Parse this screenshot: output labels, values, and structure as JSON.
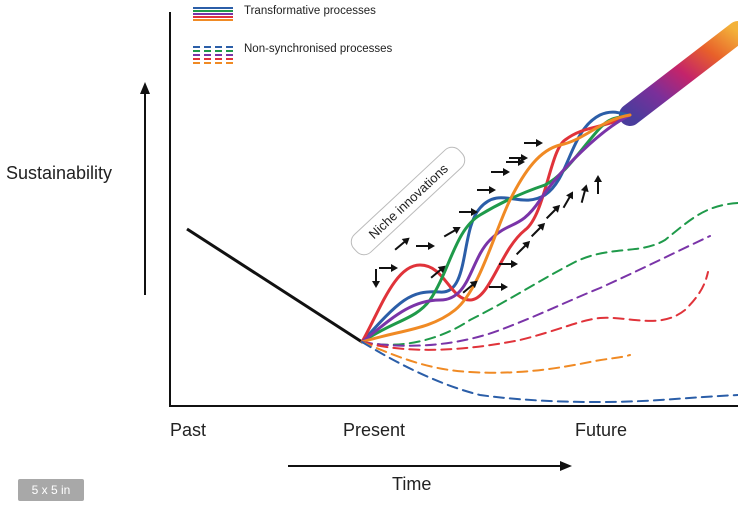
{
  "legend": {
    "transformative": "Transformative processes",
    "non_sync": "Non-synchronised processes"
  },
  "axes": {
    "y_label": "Sustainability",
    "x_label": "Time",
    "x_ticks": [
      "Past",
      "Present",
      "Future"
    ]
  },
  "annotation": "Niche innovations",
  "badge": "5 x 5 in",
  "colors": {
    "blue": "#2b5ea8",
    "red": "#e0333a",
    "green": "#1f9a4a",
    "purple": "#7a34a8",
    "orange": "#f08a24",
    "black": "#111111"
  }
}
